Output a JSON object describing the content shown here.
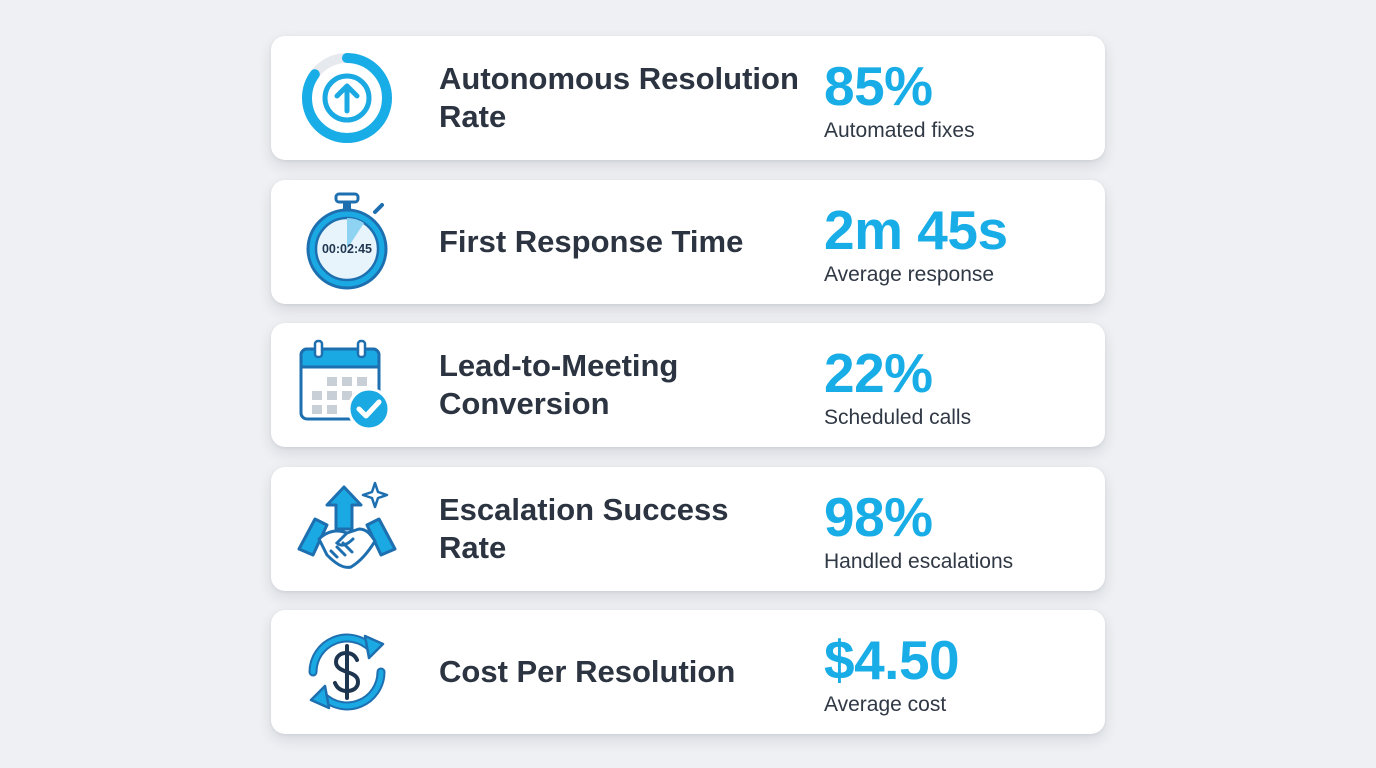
{
  "metrics": [
    {
      "icon": "circular-progress-arrow-icon",
      "label": "Autonomous Resolution Rate",
      "value": "85%",
      "caption": "Automated fixes",
      "progress": 0.85
    },
    {
      "icon": "stopwatch-icon",
      "label": "First Response Time",
      "value": "2m 45s",
      "caption": "Average response",
      "timer_text": "00:02:45"
    },
    {
      "icon": "calendar-check-icon",
      "label": "Lead-to-Meeting Conversion",
      "value": "22%",
      "caption": "Scheduled calls"
    },
    {
      "icon": "handshake-arrow-icon",
      "label": "Escalation Success Rate",
      "value": "98%",
      "caption": "Handled escalations"
    },
    {
      "icon": "dollar-cycle-icon",
      "label": "Cost Per Resolution",
      "value": "$4.50",
      "caption": "Average cost"
    }
  ],
  "colors": {
    "accent": "#18ade6",
    "dark": "#2b3440",
    "card": "#ffffff",
    "background": "#eef0f3"
  }
}
